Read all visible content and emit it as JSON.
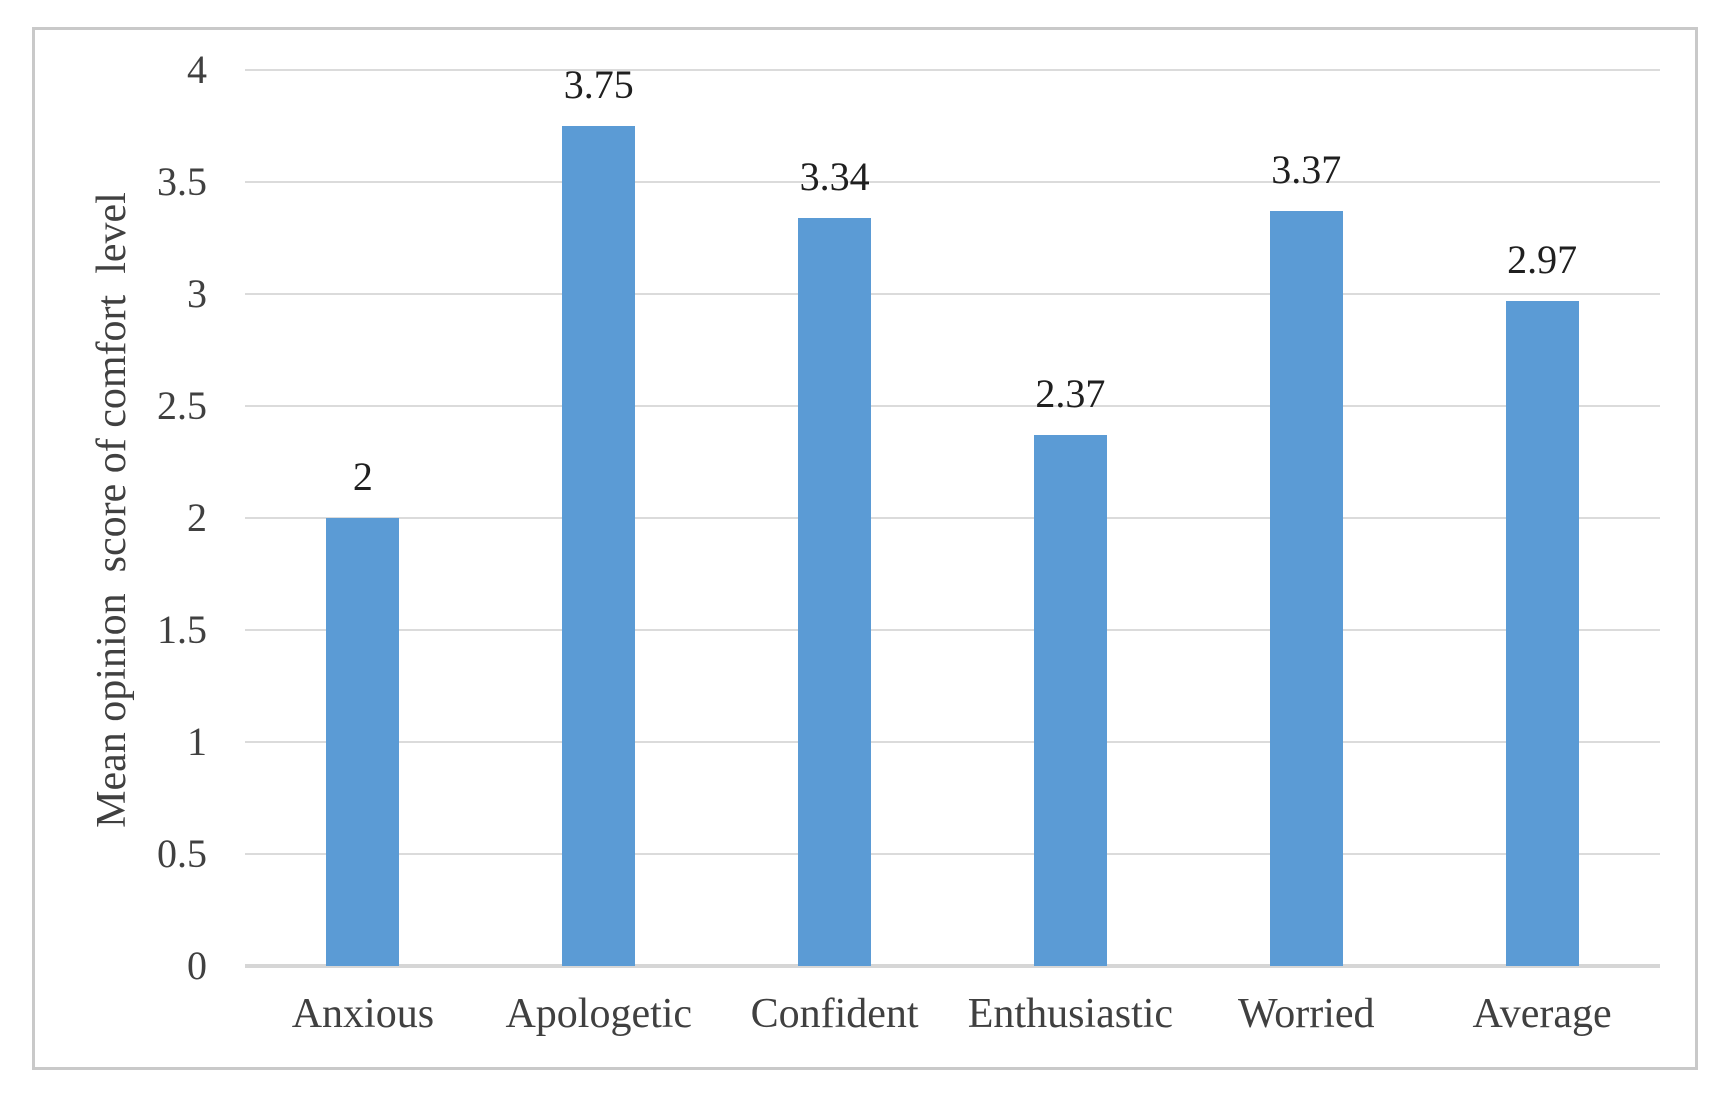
{
  "chart_data": {
    "type": "bar",
    "title": "",
    "categories": [
      "Anxious",
      "Apologetic",
      "Confident",
      "Enthusiastic",
      "Worried",
      "Average"
    ],
    "values": [
      2,
      3.75,
      3.34,
      2.37,
      3.37,
      2.97
    ],
    "value_labels": [
      "2",
      "3.75",
      "3.34",
      "2.37",
      "3.37",
      "2.97"
    ],
    "xlabel": "",
    "ylabel": "Mean opinion  score of comfort  level",
    "ylim": [
      0,
      4
    ],
    "yticks": [
      0,
      0.5,
      1,
      1.5,
      2,
      2.5,
      3,
      3.5,
      4
    ],
    "ytick_labels": [
      "0",
      "0.5",
      "1",
      "1.5",
      "2",
      "2.5",
      "3",
      "3.5",
      "4"
    ],
    "grid": "horizontal-on",
    "legend": "none",
    "colors": {
      "bar": "#5b9bd5",
      "gridline": "#dbdbdb",
      "baseline": "#d6d6d6",
      "border": "#c9c9c9",
      "tick_text": "#404040",
      "value_text": "#1f1f1f",
      "category_text": "#404040"
    }
  }
}
